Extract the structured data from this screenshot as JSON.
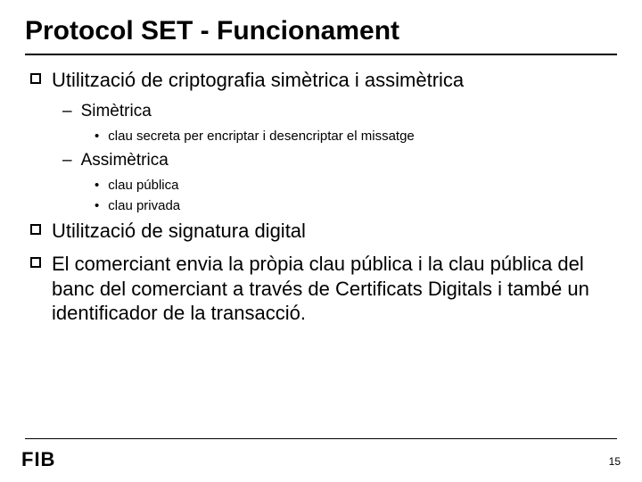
{
  "title": "Protocol SET - Funcionament",
  "items": {
    "a": "Utilització de criptografia simètrica i assimètrica",
    "a1": "Simètrica",
    "a1a": "clau secreta per encriptar i desencriptar el missatge",
    "a2": "Assimètrica",
    "a2a": "clau pública",
    "a2b": "clau privada",
    "b": "Utilització de signatura digital",
    "c": "El comerciant envia la pròpia clau pública i la clau pública del banc del comerciant a través de Certificats Digitals i també un identificador de la transacció."
  },
  "logo": "FIB",
  "page": "15",
  "colors": {
    "text": "#000000",
    "bg": "#ffffff",
    "rule": "#000000"
  }
}
